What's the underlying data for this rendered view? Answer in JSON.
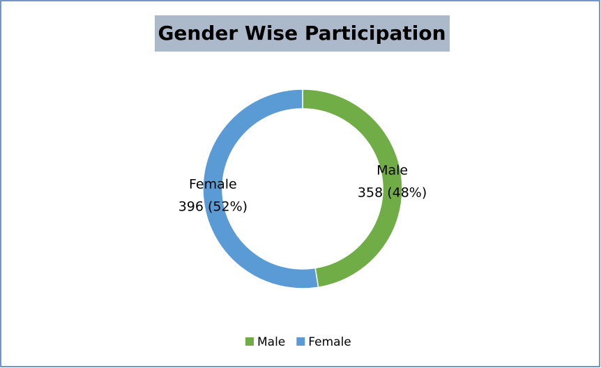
{
  "chart_data": {
    "type": "donut",
    "title": "Gender Wise Participation",
    "categories": [
      "Male",
      "Female"
    ],
    "values": [
      358,
      396
    ],
    "value_labels": [
      "358 (48%)",
      "396 (52%)"
    ],
    "colors": [
      "#70ad47",
      "#5b9bd5"
    ],
    "legend": "bottom"
  }
}
